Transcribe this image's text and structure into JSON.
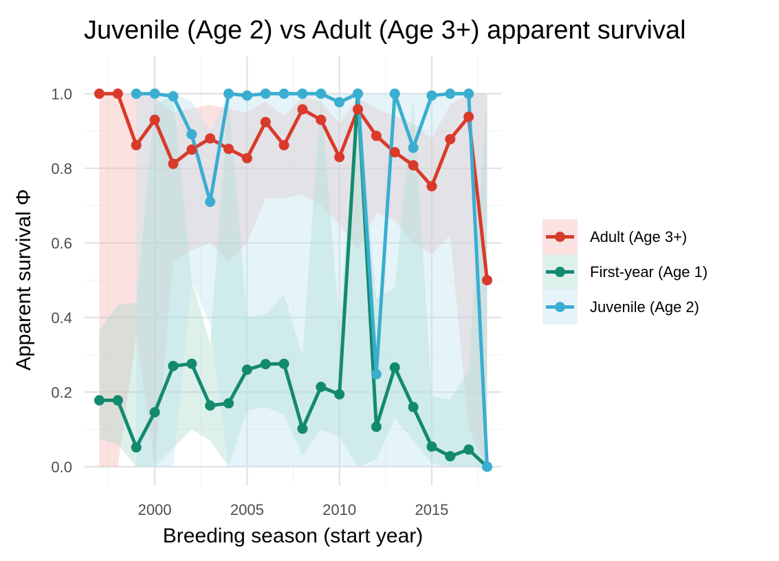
{
  "chart_data": {
    "type": "line",
    "title": "Juvenile (Age 2) vs Adult (Age 3+) apparent survival",
    "xlabel": "Breeding season (start year)",
    "ylabel": "Apparent survival Φ",
    "xlim": [
      1996.2,
      2018.8
    ],
    "ylim": [
      -0.05,
      1.1
    ],
    "x_ticks": [
      2000,
      2005,
      2010,
      2015
    ],
    "y_ticks": [
      0.0,
      0.2,
      0.4,
      0.6,
      0.8,
      1.0
    ],
    "x_tick_labels": [
      "2000",
      "2005",
      "2010",
      "2015"
    ],
    "y_tick_labels": [
      "0.0",
      "0.2",
      "0.4",
      "0.6",
      "0.8",
      "1.0"
    ],
    "grid": true,
    "legend_position": "right",
    "series": [
      {
        "name": "Adult (Age 3+)",
        "color": "#d93a2b",
        "ribbon_color": "#f8b4b4",
        "points": [
          {
            "x": 1997,
            "y": 1.0,
            "lo": 0.0,
            "hi": 1.0
          },
          {
            "x": 1998,
            "y": 1.0,
            "lo": 0.0,
            "hi": 1.0
          },
          {
            "x": 1999,
            "y": 0.862,
            "lo": 0.35,
            "hi": 1.0
          },
          {
            "x": 2000,
            "y": 0.93,
            "lo": 0.0,
            "hi": 0.99
          },
          {
            "x": 2001,
            "y": 0.812,
            "lo": 0.55,
            "hi": 0.95
          },
          {
            "x": 2002,
            "y": 0.85,
            "lo": 0.58,
            "hi": 0.96
          },
          {
            "x": 2003,
            "y": 0.88,
            "lo": 0.6,
            "hi": 0.97
          },
          {
            "x": 2004,
            "y": 0.852,
            "lo": 0.55,
            "hi": 0.96
          },
          {
            "x": 2005,
            "y": 0.827,
            "lo": 0.6,
            "hi": 0.95
          },
          {
            "x": 2006,
            "y": 0.924,
            "lo": 0.72,
            "hi": 0.98
          },
          {
            "x": 2007,
            "y": 0.862,
            "lo": 0.72,
            "hi": 0.94
          },
          {
            "x": 2008,
            "y": 0.958,
            "lo": 0.73,
            "hi": 0.99
          },
          {
            "x": 2009,
            "y": 0.93,
            "lo": 0.7,
            "hi": 0.98
          },
          {
            "x": 2010,
            "y": 0.83,
            "lo": 0.65,
            "hi": 0.92
          },
          {
            "x": 2011,
            "y": 0.958,
            "lo": 0.58,
            "hi": 0.99
          },
          {
            "x": 2012,
            "y": 0.887,
            "lo": 0.68,
            "hi": 0.96
          },
          {
            "x": 2013,
            "y": 0.843,
            "lo": 0.66,
            "hi": 0.94
          },
          {
            "x": 2014,
            "y": 0.808,
            "lo": 0.6,
            "hi": 0.92
          },
          {
            "x": 2015,
            "y": 0.752,
            "lo": 0.57,
            "hi": 0.88
          },
          {
            "x": 2016,
            "y": 0.878,
            "lo": 0.62,
            "hi": 0.97
          },
          {
            "x": 2017,
            "y": 0.938,
            "lo": 0.1,
            "hi": 1.0
          },
          {
            "x": 2018,
            "y": 0.5,
            "lo": 0.0,
            "hi": 1.0
          }
        ]
      },
      {
        "name": "First-year (Age 1)",
        "color": "#138a6d",
        "ribbon_color": "#a9d9cb",
        "points": [
          {
            "x": 1997,
            "y": 0.178,
            "lo": 0.075,
            "hi": 0.365
          },
          {
            "x": 1998,
            "y": 0.178,
            "lo": 0.06,
            "hi": 0.435
          },
          {
            "x": 1999,
            "y": 0.052,
            "lo": 0.0,
            "hi": 0.44
          },
          {
            "x": 2000,
            "y": 0.146,
            "lo": 0.0,
            "hi": 0.97
          },
          {
            "x": 2001,
            "y": 0.27,
            "lo": 0.05,
            "hi": 0.995
          },
          {
            "x": 2002,
            "y": 0.276,
            "lo": 0.1,
            "hi": 0.5
          },
          {
            "x": 2003,
            "y": 0.164,
            "lo": 0.07,
            "hi": 0.33
          },
          {
            "x": 2004,
            "y": 0.17,
            "lo": 0.0,
            "hi": 0.99
          },
          {
            "x": 2005,
            "y": 0.26,
            "lo": 0.15,
            "hi": 0.4
          },
          {
            "x": 2006,
            "y": 0.275,
            "lo": 0.16,
            "hi": 0.41
          },
          {
            "x": 2007,
            "y": 0.276,
            "lo": 0.14,
            "hi": 0.46
          },
          {
            "x": 2008,
            "y": 0.102,
            "lo": 0.03,
            "hi": 0.3
          },
          {
            "x": 2009,
            "y": 0.214,
            "lo": 0.1,
            "hi": 0.99
          },
          {
            "x": 2010,
            "y": 0.194,
            "lo": 0.08,
            "hi": 0.38
          },
          {
            "x": 2011,
            "y": 1.0,
            "lo": 0.0,
            "hi": 1.0
          },
          {
            "x": 2012,
            "y": 0.107,
            "lo": 0.02,
            "hi": 0.45
          },
          {
            "x": 2013,
            "y": 0.266,
            "lo": 0.13,
            "hi": 0.48
          },
          {
            "x": 2014,
            "y": 0.16,
            "lo": 0.07,
            "hi": 0.99
          },
          {
            "x": 2015,
            "y": 0.054,
            "lo": 0.01,
            "hi": 0.19
          },
          {
            "x": 2016,
            "y": 0.028,
            "lo": 0.0,
            "hi": 0.18
          },
          {
            "x": 2017,
            "y": 0.046,
            "lo": 0.0,
            "hi": 0.26
          },
          {
            "x": 2018,
            "y": 0.0,
            "lo": 0.0,
            "hi": 1.0
          }
        ]
      },
      {
        "name": "Juvenile (Age 2)",
        "color": "#3aaed0",
        "ribbon_color": "#bde3ef",
        "points": [
          {
            "x": 1999,
            "y": 1.0,
            "lo": 0.0,
            "hi": 1.0
          },
          {
            "x": 2000,
            "y": 1.0,
            "lo": 0.0,
            "hi": 1.0
          },
          {
            "x": 2001,
            "y": 0.993,
            "lo": 0.0,
            "hi": 1.0
          },
          {
            "x": 2002,
            "y": 0.891,
            "lo": 0.5,
            "hi": 0.98
          },
          {
            "x": 2003,
            "y": 0.71,
            "lo": 0.38,
            "hi": 0.9
          },
          {
            "x": 2004,
            "y": 1.0,
            "lo": 0.0,
            "hi": 1.0
          },
          {
            "x": 2005,
            "y": 0.995,
            "lo": 0.0,
            "hi": 1.0
          },
          {
            "x": 2006,
            "y": 1.0,
            "lo": 0.0,
            "hi": 1.0
          },
          {
            "x": 2007,
            "y": 1.0,
            "lo": 0.0,
            "hi": 1.0
          },
          {
            "x": 2008,
            "y": 1.0,
            "lo": 0.0,
            "hi": 1.0
          },
          {
            "x": 2009,
            "y": 1.0,
            "lo": 0.0,
            "hi": 1.0
          },
          {
            "x": 2010,
            "y": 0.977,
            "lo": 0.0,
            "hi": 1.0
          },
          {
            "x": 2011,
            "y": 1.0,
            "lo": 0.0,
            "hi": 1.0
          },
          {
            "x": 2012,
            "y": 0.248,
            "lo": 0.0,
            "hi": 1.0
          },
          {
            "x": 2013,
            "y": 1.0,
            "lo": 0.0,
            "hi": 1.0
          },
          {
            "x": 2014,
            "y": 0.855,
            "lo": 0.0,
            "hi": 1.0
          },
          {
            "x": 2015,
            "y": 0.995,
            "lo": 0.0,
            "hi": 1.0
          },
          {
            "x": 2016,
            "y": 1.0,
            "lo": 0.0,
            "hi": 1.0
          },
          {
            "x": 2017,
            "y": 1.0,
            "lo": 0.0,
            "hi": 1.0
          },
          {
            "x": 2018,
            "y": 0.0,
            "lo": 0.0,
            "hi": 1.0
          }
        ]
      }
    ]
  }
}
